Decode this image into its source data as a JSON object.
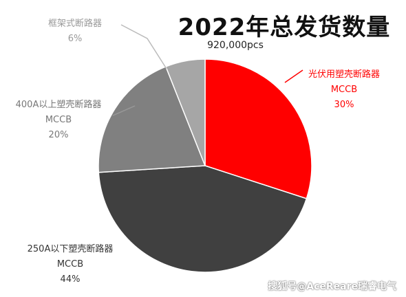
{
  "chart_data": {
    "type": "pie",
    "title": "2022年总发货数量",
    "subtitle": "920,000pcs",
    "slices": [
      {
        "name": "光伏用塑壳断路器",
        "name2": "MCCB",
        "value": 30,
        "pct_label": "30%",
        "color": "#ff0000",
        "label_color": "#ff0000"
      },
      {
        "name": "250A以下塑壳断路器",
        "name2": "MCCB",
        "value": 44,
        "pct_label": "44%",
        "color": "#404040",
        "label_color": "#333333"
      },
      {
        "name": "400A以上塑壳断路器",
        "name2": "MCCB",
        "value": 20,
        "pct_label": "20%",
        "color": "#808080",
        "label_color": "#777777"
      },
      {
        "name": "框架式断路器",
        "name2": "",
        "value": 6,
        "pct_label": "6%",
        "color": "#a6a6a6",
        "label_color": "#999999"
      }
    ]
  },
  "watermark": "搜狐号@AceReare瑞睿电气"
}
